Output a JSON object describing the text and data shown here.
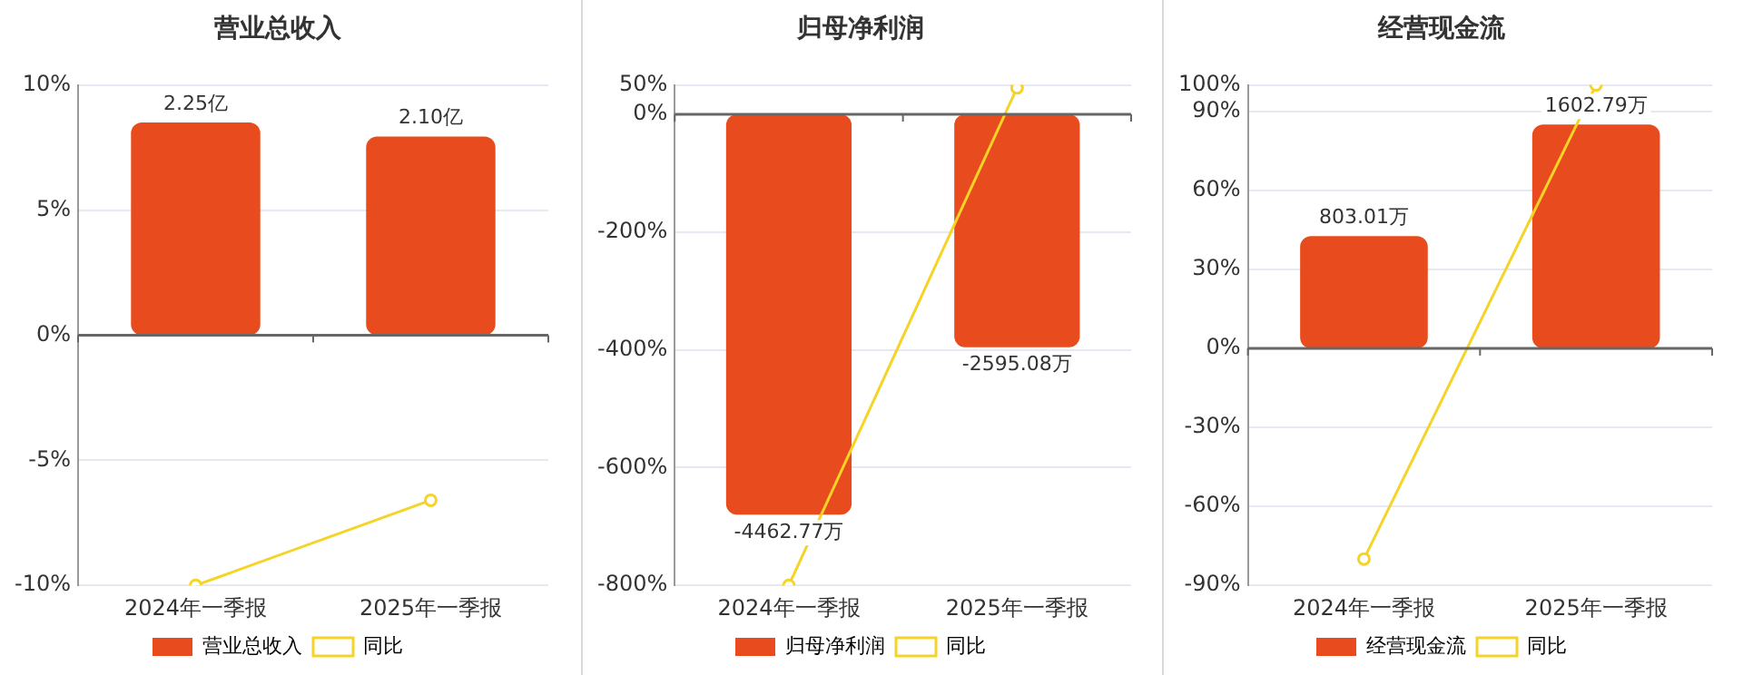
{
  "chart_data": [
    {
      "type": "bar",
      "title": "营业总收入",
      "categories": [
        "2024年一季报",
        "2025年一季报"
      ],
      "series": [
        {
          "name": "营业总收入",
          "axis": "y2",
          "color": "#e84c1e",
          "values": [
            2.25,
            2.1
          ],
          "value_labels": [
            "2.25亿",
            "2.10亿"
          ]
        },
        {
          "name": "同比",
          "type": "line",
          "color": "#f5d327",
          "values": [
            -10,
            -6.6
          ]
        }
      ],
      "ylim": [
        -10,
        10
      ],
      "yticks": [
        {
          "value": -10,
          "label": "-10%"
        },
        {
          "value": -5,
          "label": "-5%"
        },
        {
          "value": 0,
          "label": "0%"
        },
        {
          "value": 5,
          "label": "5%"
        },
        {
          "value": 10,
          "label": "10%"
        }
      ],
      "grid": "y",
      "legend": "bottom",
      "marker": "circle"
    },
    {
      "type": "bar",
      "title": "归母净利润",
      "categories": [
        "2024年一季报",
        "2025年一季报"
      ],
      "series": [
        {
          "name": "归母净利润",
          "axis": "y2",
          "color": "#e84c1e",
          "values": [
            -4462.77,
            -2595.08
          ],
          "value_labels": [
            "-4462.77万",
            "-2595.08万"
          ]
        },
        {
          "name": "同比",
          "type": "line",
          "color": "#f5d327",
          "values": [
            -800,
            45
          ]
        }
      ],
      "ylim": [
        -800,
        50
      ],
      "yticks": [
        {
          "value": -800,
          "label": "-800%"
        },
        {
          "value": -600,
          "label": "-600%"
        },
        {
          "value": -400,
          "label": "-400%"
        },
        {
          "value": -200,
          "label": "-200%"
        },
        {
          "value": 0,
          "label": "0%"
        },
        {
          "value": 50,
          "label": "50%"
        }
      ],
      "grid": "y",
      "legend": "bottom",
      "marker": "circle"
    },
    {
      "type": "bar",
      "title": "经营现金流",
      "categories": [
        "2024年一季报",
        "2025年一季报"
      ],
      "series": [
        {
          "name": "经营现金流",
          "axis": "y2",
          "color": "#e84c1e",
          "values": [
            803.01,
            1602.79
          ],
          "value_labels": [
            "803.01万",
            "1602.79万"
          ]
        },
        {
          "name": "同比",
          "type": "line",
          "color": "#f5d327",
          "values": [
            -80,
            100
          ]
        }
      ],
      "ylim": [
        -90,
        100
      ],
      "yticks": [
        {
          "value": -90,
          "label": "-90%"
        },
        {
          "value": -60,
          "label": "-60%"
        },
        {
          "value": -30,
          "label": "-30%"
        },
        {
          "value": 0,
          "label": "0%"
        },
        {
          "value": 30,
          "label": "30%"
        },
        {
          "value": 60,
          "label": "60%"
        },
        {
          "value": 90,
          "label": "90%"
        },
        {
          "value": 100,
          "label": "100%"
        }
      ],
      "grid": "y",
      "legend": "bottom",
      "marker": "circle"
    }
  ]
}
